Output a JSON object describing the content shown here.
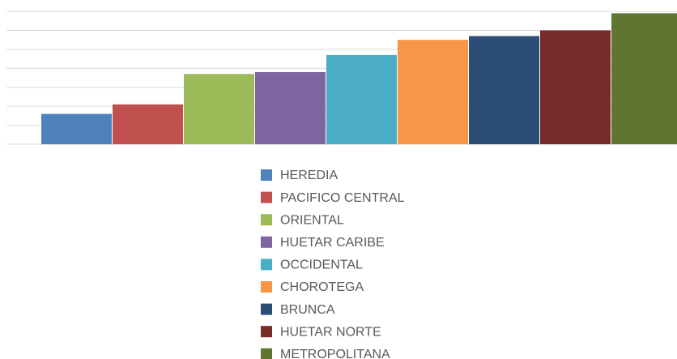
{
  "chart_data": {
    "type": "bar",
    "categories": [
      "HEREDIA",
      "PACIFICO CENTRAL",
      "ORIENTAL",
      "HUETAR CARIBE",
      "OCCIDENTAL",
      "CHOROTEGA",
      "BRUNCA",
      "HUETAR NORTE",
      "METROPOLITANA"
    ],
    "values": [
      1.6,
      2.1,
      3.7,
      3.8,
      4.7,
      5.5,
      5.7,
      6.0,
      6.9
    ],
    "colors": [
      "#4f81bd",
      "#c0504d",
      "#9bbb59",
      "#8064a2",
      "#4bacc6",
      "#f79646",
      "#2c4d75",
      "#772c2a",
      "#5f7530"
    ],
    "ylim": [
      0,
      7.6
    ],
    "yticks": [
      0,
      1,
      2,
      3,
      4,
      5,
      6,
      7
    ],
    "grid": true
  }
}
